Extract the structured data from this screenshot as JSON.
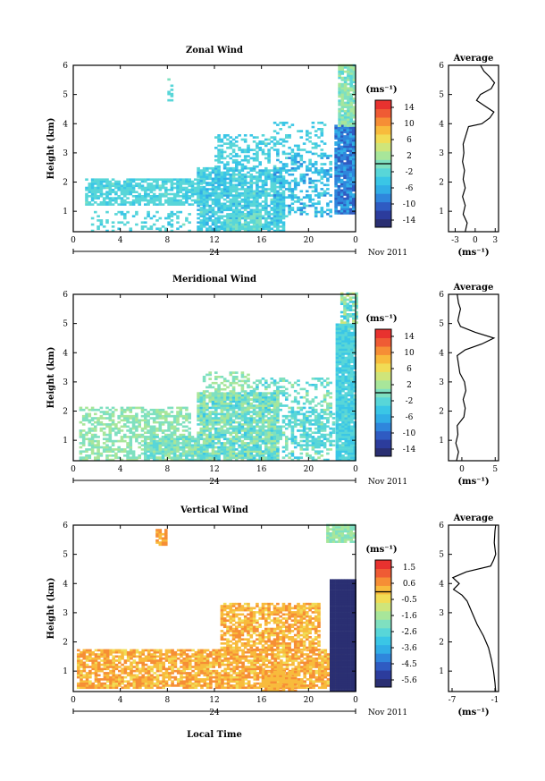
{
  "chart_data": {
    "type": "heatmap",
    "xlabel": "Local Time",
    "date_label": "Nov 2011",
    "x_ticks": [
      "0",
      "4",
      "8",
      "12",
      "16",
      "20",
      "0"
    ],
    "x_day_label": "24",
    "xlim": [
      0,
      24
    ],
    "ylabel": "Height (km)",
    "y_ticks": [
      "1",
      "2",
      "3",
      "4",
      "5",
      "6"
    ],
    "ylim": [
      0.3,
      6
    ],
    "colorbar_unit": "(ms⁻¹)",
    "avg_title": "Average",
    "avg_unit": "(ms⁻¹)",
    "colormap": [
      "#2a2f72",
      "#2c3c9c",
      "#2f5bc2",
      "#2f86dc",
      "#31aee6",
      "#3ac6e6",
      "#58d6d8",
      "#7fe0c0",
      "#a8e69a",
      "#cfe57a",
      "#f1dc55",
      "#f8bb3c",
      "#f68e35",
      "#ef5b34",
      "#e8322f"
    ],
    "panels": [
      {
        "title": "Zonal Wind",
        "colorbar_ticks": [
          "14",
          "10",
          "6",
          "2",
          "-2",
          "-6",
          "-10",
          "-14"
        ],
        "colorbar_range": [
          -16,
          16
        ],
        "avg_ticks": [
          "-3",
          "0",
          "3"
        ],
        "avg_xlim": [
          -4,
          3.5
        ],
        "avg_profile": {
          "height": [
            0.3,
            0.6,
            0.9,
            1.2,
            1.5,
            1.8,
            2.1,
            2.4,
            2.7,
            3.0,
            3.3,
            3.6,
            3.9,
            4.0,
            4.2,
            4.4,
            4.6,
            4.8,
            5.0,
            5.2,
            5.4,
            5.6,
            5.8,
            6.0
          ],
          "value": [
            -1.5,
            -1.2,
            -1.8,
            -1.5,
            -1.9,
            -1.5,
            -1.8,
            -1.6,
            -1.9,
            -1.7,
            -1.8,
            -1.4,
            -1.0,
            1.0,
            2.2,
            2.8,
            1.5,
            0.2,
            0.8,
            2.4,
            2.9,
            2.2,
            1.3,
            0.8
          ]
        }
      },
      {
        "title": "Meridional Wind",
        "colorbar_ticks": [
          "14",
          "10",
          "6",
          "2",
          "-2",
          "-6",
          "-10",
          "-14"
        ],
        "colorbar_range": [
          -16,
          16
        ],
        "avg_ticks": [
          "0",
          "5"
        ],
        "avg_xlim": [
          -2,
          5.5
        ],
        "avg_profile": {
          "height": [
            0.3,
            0.6,
            0.9,
            1.2,
            1.5,
            1.8,
            2.1,
            2.4,
            2.7,
            3.0,
            3.3,
            3.6,
            3.9,
            4.1,
            4.3,
            4.5,
            4.7,
            4.9,
            5.1,
            5.3,
            5.5,
            5.7,
            6.0
          ],
          "value": [
            -0.8,
            -0.5,
            -0.9,
            -0.6,
            -0.7,
            0.3,
            0.5,
            0.2,
            0.6,
            0.4,
            -0.3,
            -0.5,
            -0.7,
            0.5,
            3.0,
            4.8,
            2.0,
            -0.2,
            -0.6,
            -0.4,
            -0.2,
            -0.5,
            -0.7
          ]
        }
      },
      {
        "title": "Vertical Wind",
        "colorbar_ticks": [
          "1.5",
          "0.6",
          "-0.5",
          "-1.6",
          "-2.6",
          "-3.6",
          "-4.5",
          "-5.6"
        ],
        "colorbar_range": [
          -6.0,
          2.0
        ],
        "avg_ticks": [
          "-7",
          "-1"
        ],
        "avg_xlim": [
          -7.5,
          -0.5
        ],
        "avg_profile": {
          "height": [
            0.3,
            0.6,
            1.0,
            1.4,
            1.8,
            2.2,
            2.6,
            3.0,
            3.4,
            3.6,
            3.8,
            4.0,
            4.2,
            4.4,
            4.6,
            4.8,
            5.0,
            5.4,
            5.8,
            6.0
          ],
          "value": [
            -0.9,
            -1.0,
            -1.2,
            -1.5,
            -1.9,
            -2.6,
            -3.5,
            -4.2,
            -4.9,
            -5.6,
            -6.8,
            -6.0,
            -6.9,
            -5.0,
            -1.6,
            -1.2,
            -0.9,
            -1.1,
            -1.0,
            -0.9
          ]
        }
      }
    ]
  }
}
